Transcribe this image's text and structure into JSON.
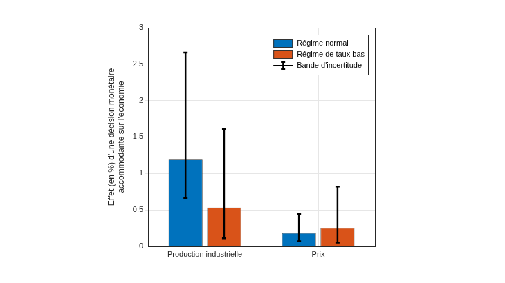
{
  "chart_data": {
    "type": "bar",
    "categories": [
      "Production industrielle",
      "Prix"
    ],
    "ylabel": [
      "Effet (en %) d'une décision monétaire",
      "accommodante sur l'économie"
    ],
    "series": [
      {
        "name": "Régime normal",
        "color": "#0072bd",
        "values": [
          1.19,
          0.18
        ],
        "error_low": [
          0.66,
          0.07
        ],
        "error_high": [
          2.66,
          0.44
        ]
      },
      {
        "name": "Régime de taux bas",
        "color": "#d95319",
        "values": [
          0.53,
          0.25
        ],
        "error_low": [
          0.11,
          0.05
        ],
        "error_high": [
          1.61,
          0.82
        ]
      }
    ],
    "error_bar_label": "Bande d'incertitude",
    "ylim": [
      0,
      3
    ],
    "yticks": [
      0,
      0.5,
      1,
      1.5,
      2,
      2.5,
      3
    ],
    "grid": true,
    "legend": "upper right"
  }
}
